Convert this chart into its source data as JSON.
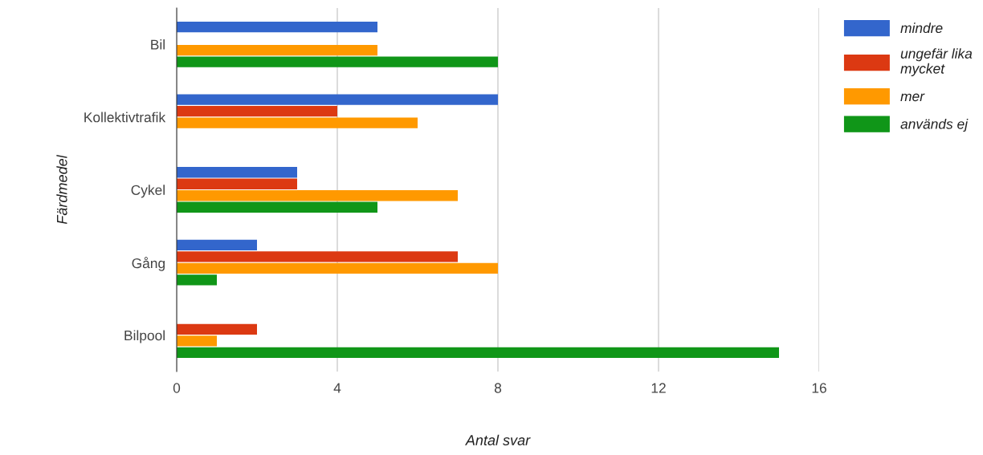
{
  "chart_data": {
    "type": "bar",
    "orientation": "horizontal",
    "xlabel": "Antal svar",
    "ylabel": "Färdmedel",
    "categories": [
      "Bil",
      "Kollektivtrafik",
      "Cykel",
      "Gång",
      "Bilpool"
    ],
    "series": [
      {
        "name": "mindre",
        "color": "#3366cc",
        "values": [
          5,
          8,
          3,
          2,
          0
        ]
      },
      {
        "name": "ungefär lika mycket",
        "color": "#dc3912",
        "values": [
          0,
          4,
          3,
          7,
          2
        ]
      },
      {
        "name": "mer",
        "color": "#ff9900",
        "values": [
          5,
          6,
          7,
          8,
          1
        ]
      },
      {
        "name": "används ej",
        "color": "#109618",
        "values": [
          8,
          0,
          5,
          1,
          15
        ]
      }
    ],
    "xlim": [
      0,
      16
    ],
    "xticks": [
      0,
      4,
      8,
      12,
      16
    ],
    "grid": "x",
    "legend": "right"
  }
}
